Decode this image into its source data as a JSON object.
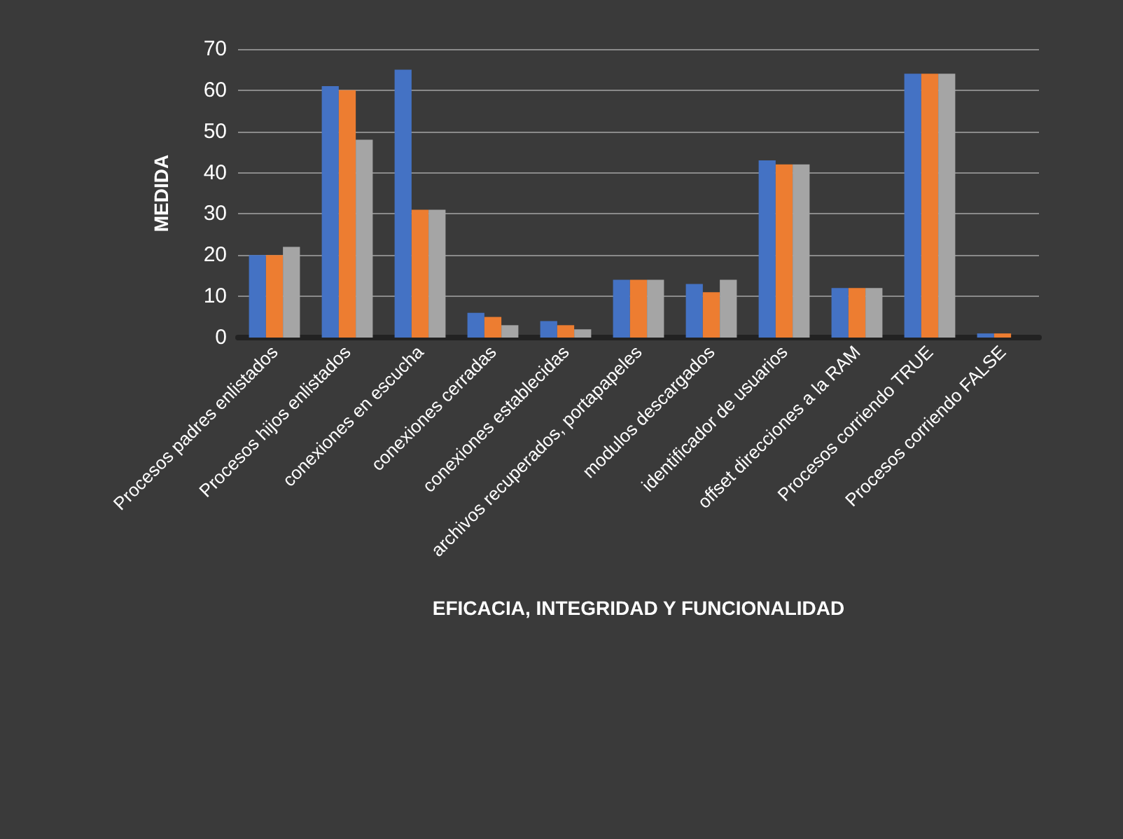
{
  "chart_data": {
    "type": "bar",
    "xlabel": "EFICACIA, INTEGRIDAD Y FUNCIONALIDAD",
    "ylabel": "MEDIDA",
    "categories": [
      "Procesos padres enlistados",
      "Procesos hijos enlistados",
      "conexiones en escucha",
      "conexiones cerradas",
      "conexiones establecidas",
      "archivos recuperados, portapapeles",
      "modulos descargados",
      "identificador de usuarios",
      "offset direcciones a la RAM",
      "Procesos corriendo TRUE",
      "Procesos corriendo FALSE"
    ],
    "series": [
      {
        "color": "#4472c4",
        "values": [
          20,
          61,
          65,
          6,
          4,
          14,
          13,
          43,
          12,
          64,
          1
        ]
      },
      {
        "color": "#ed7d31",
        "values": [
          20,
          60,
          31,
          5,
          3,
          14,
          11,
          42,
          12,
          64,
          1
        ]
      },
      {
        "color": "#a5a5a5",
        "values": [
          22,
          48,
          31,
          3,
          2,
          14,
          14,
          42,
          12,
          64,
          0
        ]
      }
    ],
    "ylim": [
      0,
      70
    ],
    "yticks": [
      0,
      10,
      20,
      30,
      40,
      50,
      60,
      70
    ],
    "grid": "y"
  }
}
